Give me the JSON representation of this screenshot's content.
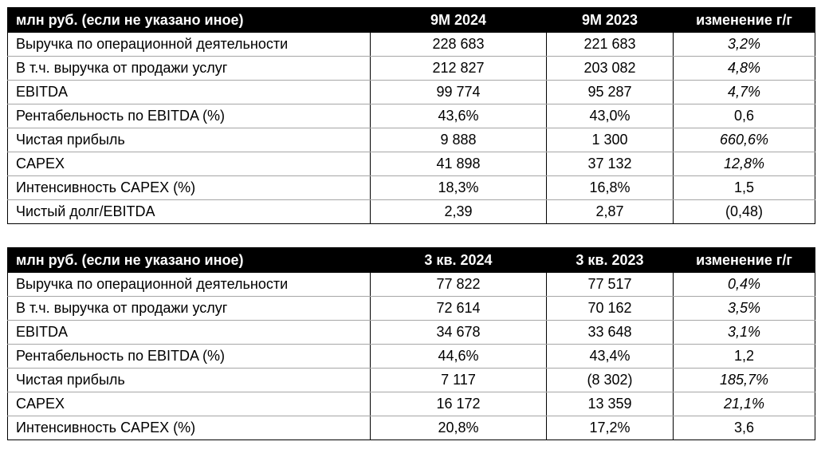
{
  "tables": [
    {
      "header": {
        "label": "млн руб.  (если не указано иное)",
        "col_a": "9М 2024",
        "col_b": "9М 2023",
        "col_change": "изменение г/г"
      },
      "rows": [
        {
          "label": "Выручка по операционной деятельности",
          "a": "228 683",
          "b": "221 683",
          "change": "3,2%",
          "change_italic": true
        },
        {
          "label": "В т.ч. выручка от продажи услуг",
          "a": "212 827",
          "b": "203 082",
          "change": "4,8%",
          "change_italic": true
        },
        {
          "label": "EBITDA",
          "a": "99 774",
          "b": "95 287",
          "change": "4,7%",
          "change_italic": true
        },
        {
          "label": "Рентабельность по EBITDA (%)",
          "a": "43,6%",
          "b": "43,0%",
          "change": "0,6",
          "change_italic": false
        },
        {
          "label": "Чистая прибыль",
          "a": "9 888",
          "b": "1 300",
          "change": "660,6%",
          "change_italic": true
        },
        {
          "label": "CAPEX",
          "a": "41 898",
          "b": "37 132",
          "change": "12,8%",
          "change_italic": true
        },
        {
          "label": "Интенсивность CAPEX (%)",
          "a": "18,3%",
          "b": "16,8%",
          "change": "1,5",
          "change_italic": false
        },
        {
          "label": "Чистый долг/EBITDA",
          "a": "2,39",
          "b": "2,87",
          "change": "(0,48)",
          "change_italic": false
        }
      ]
    },
    {
      "header": {
        "label": "млн руб. (если не указано иное)",
        "col_a": "3 кв. 2024",
        "col_b": "3 кв. 2023",
        "col_change": "изменение г/г"
      },
      "rows": [
        {
          "label": "Выручка по операционной деятельности",
          "a": "77 822",
          "b": "77 517",
          "change": "0,4%",
          "change_italic": true
        },
        {
          "label": "В т.ч. выручка от продажи услуг",
          "a": "72 614",
          "b": "70 162",
          "change": "3,5%",
          "change_italic": true
        },
        {
          "label": "EBITDA",
          "a": "34 678",
          "b": "33 648",
          "change": "3,1%",
          "change_italic": true
        },
        {
          "label": "Рентабельность по EBITDA (%)",
          "a": "44,6%",
          "b": "43,4%",
          "change": "1,2",
          "change_italic": false
        },
        {
          "label": "Чистая прибыль",
          "a": "7 117",
          "b": "(8 302)",
          "change": "185,7%",
          "change_italic": true
        },
        {
          "label": "CAPEX",
          "a": "16 172",
          "b": "13 359",
          "change": "21,1%",
          "change_italic": true
        },
        {
          "label": "Интенсивность CAPEX (%)",
          "a": "20,8%",
          "b": "17,2%",
          "change": "3,6",
          "change_italic": false
        }
      ]
    }
  ]
}
